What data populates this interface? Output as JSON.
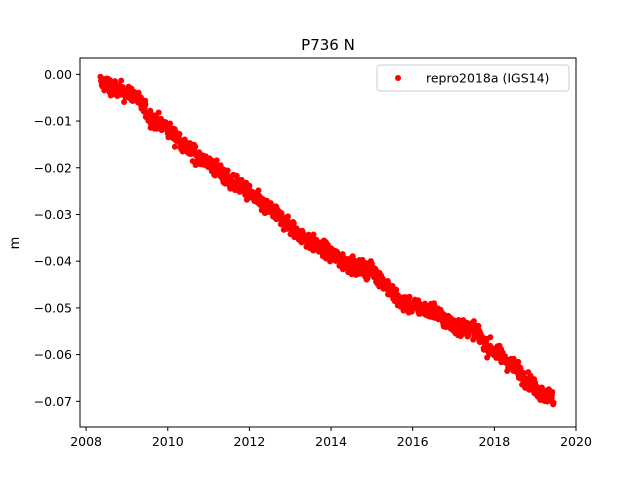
{
  "chart_data": {
    "type": "scatter",
    "title": "P736 N",
    "xlabel": "",
    "ylabel": "m",
    "xlim": [
      2007.85,
      2020.0
    ],
    "ylim": [
      -0.0755,
      0.0035
    ],
    "x_ticks": [
      2008,
      2010,
      2012,
      2014,
      2016,
      2018,
      2020
    ],
    "x_tick_labels": [
      "2008",
      "2010",
      "2012",
      "2014",
      "2016",
      "2018",
      "2020"
    ],
    "y_ticks": [
      0.0,
      -0.01,
      -0.02,
      -0.03,
      -0.04,
      -0.05,
      -0.06,
      -0.07
    ],
    "y_tick_labels": [
      "0.00",
      "−0.01",
      "−0.02",
      "−0.03",
      "−0.04",
      "−0.05",
      "−0.06",
      "−0.07"
    ],
    "grid": false,
    "legend_position": "top-right",
    "marker_color": "#ff0000",
    "series": [
      {
        "name": "repro2018a (IGS14)",
        "marker": "circle",
        "x_range": [
          2008.35,
          2019.45
        ],
        "trend_points": [
          [
            2008.35,
            -0.0015
          ],
          [
            2008.8,
            -0.0035
          ],
          [
            2009.2,
            -0.0045
          ],
          [
            2009.6,
            -0.0095
          ],
          [
            2010.0,
            -0.0115
          ],
          [
            2010.5,
            -0.016
          ],
          [
            2011.0,
            -0.019
          ],
          [
            2011.5,
            -0.0225
          ],
          [
            2012.0,
            -0.0255
          ],
          [
            2012.5,
            -0.029
          ],
          [
            2013.0,
            -0.0325
          ],
          [
            2013.5,
            -0.036
          ],
          [
            2014.0,
            -0.0385
          ],
          [
            2014.5,
            -0.041
          ],
          [
            2015.0,
            -0.042
          ],
          [
            2015.3,
            -0.0445
          ],
          [
            2015.7,
            -0.049
          ],
          [
            2016.0,
            -0.0495
          ],
          [
            2016.5,
            -0.0505
          ],
          [
            2017.0,
            -0.054
          ],
          [
            2017.5,
            -0.0545
          ],
          [
            2017.8,
            -0.058
          ],
          [
            2018.2,
            -0.0605
          ],
          [
            2018.6,
            -0.0635
          ],
          [
            2019.0,
            -0.0675
          ],
          [
            2019.45,
            -0.0695
          ]
        ],
        "scatter_amplitude": 0.0015
      }
    ]
  }
}
